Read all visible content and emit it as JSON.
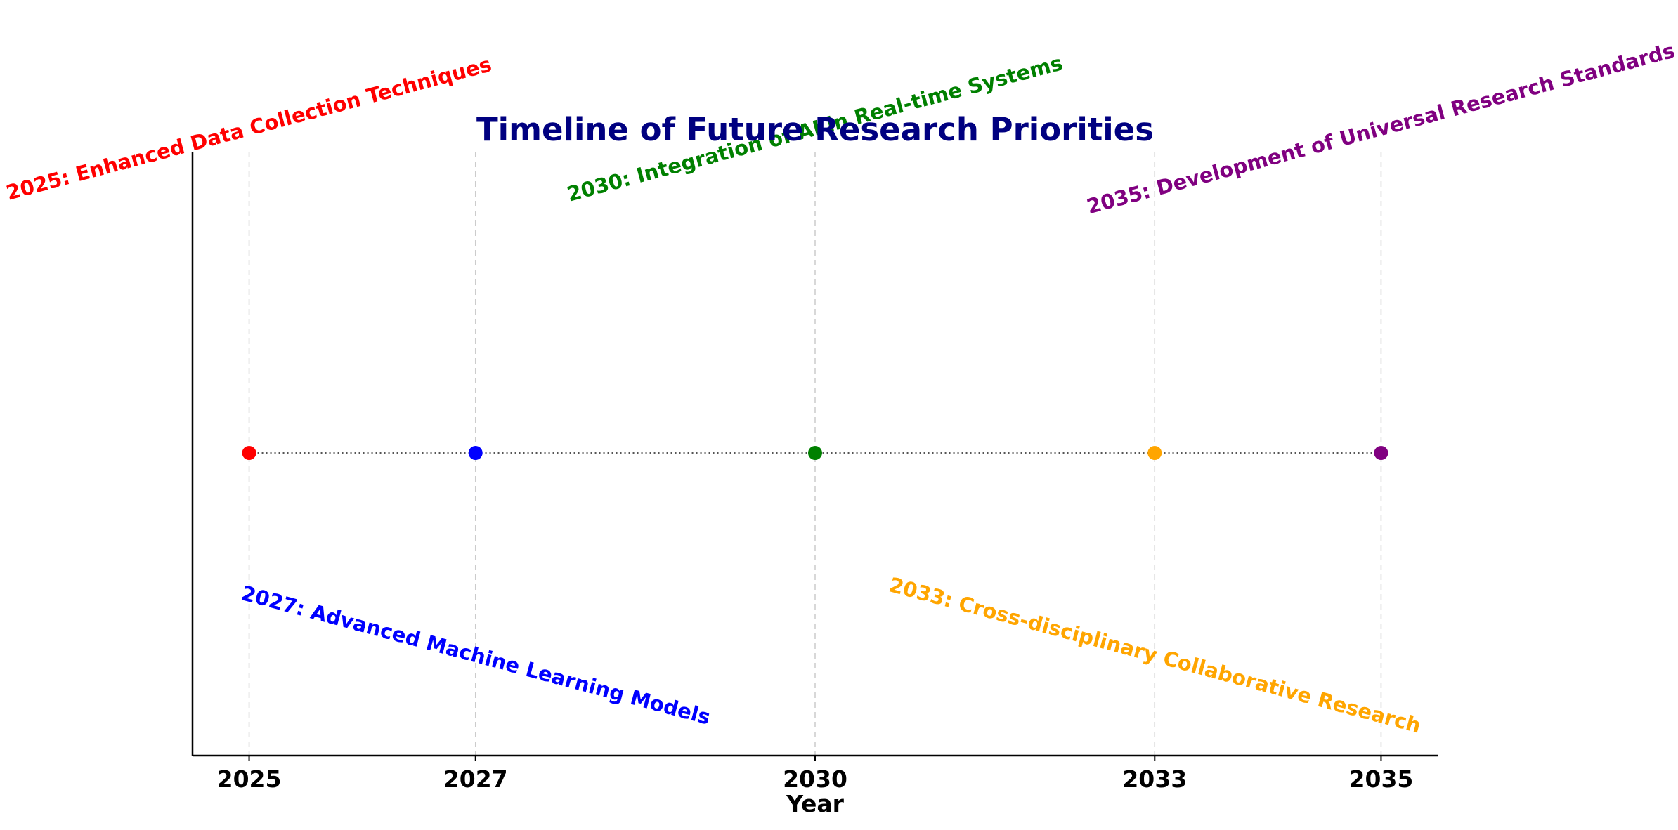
{
  "chart_data": {
    "type": "scatter",
    "title": "Timeline of Future Research Priorities",
    "xlabel": "Year",
    "ylabel": "",
    "xlim": [
      2024.5,
      2035.5
    ],
    "xticks": [
      2025,
      2027,
      2030,
      2033,
      2035
    ],
    "xtick_labels": [
      "2025",
      "2027",
      "2030",
      "2033",
      "2035"
    ],
    "grid": "vertical dashed at ticks",
    "connector": "dotted line",
    "events": [
      {
        "year": 2025,
        "label": "2025: Enhanced Data Collection Techniques",
        "color": "#ff0000",
        "side": "above"
      },
      {
        "year": 2027,
        "label": "2027: Advanced Machine Learning Models",
        "color": "#0000ff",
        "side": "below"
      },
      {
        "year": 2030,
        "label": "2030: Integration of AI in Real-time Systems",
        "color": "#008000",
        "side": "above"
      },
      {
        "year": 2033,
        "label": "2033: Cross-disciplinary Collaborative Research",
        "color": "#ffa500",
        "side": "below"
      },
      {
        "year": 2035,
        "label": "2035: Development of Universal Research Standards",
        "color": "#800080",
        "side": "above"
      }
    ]
  }
}
